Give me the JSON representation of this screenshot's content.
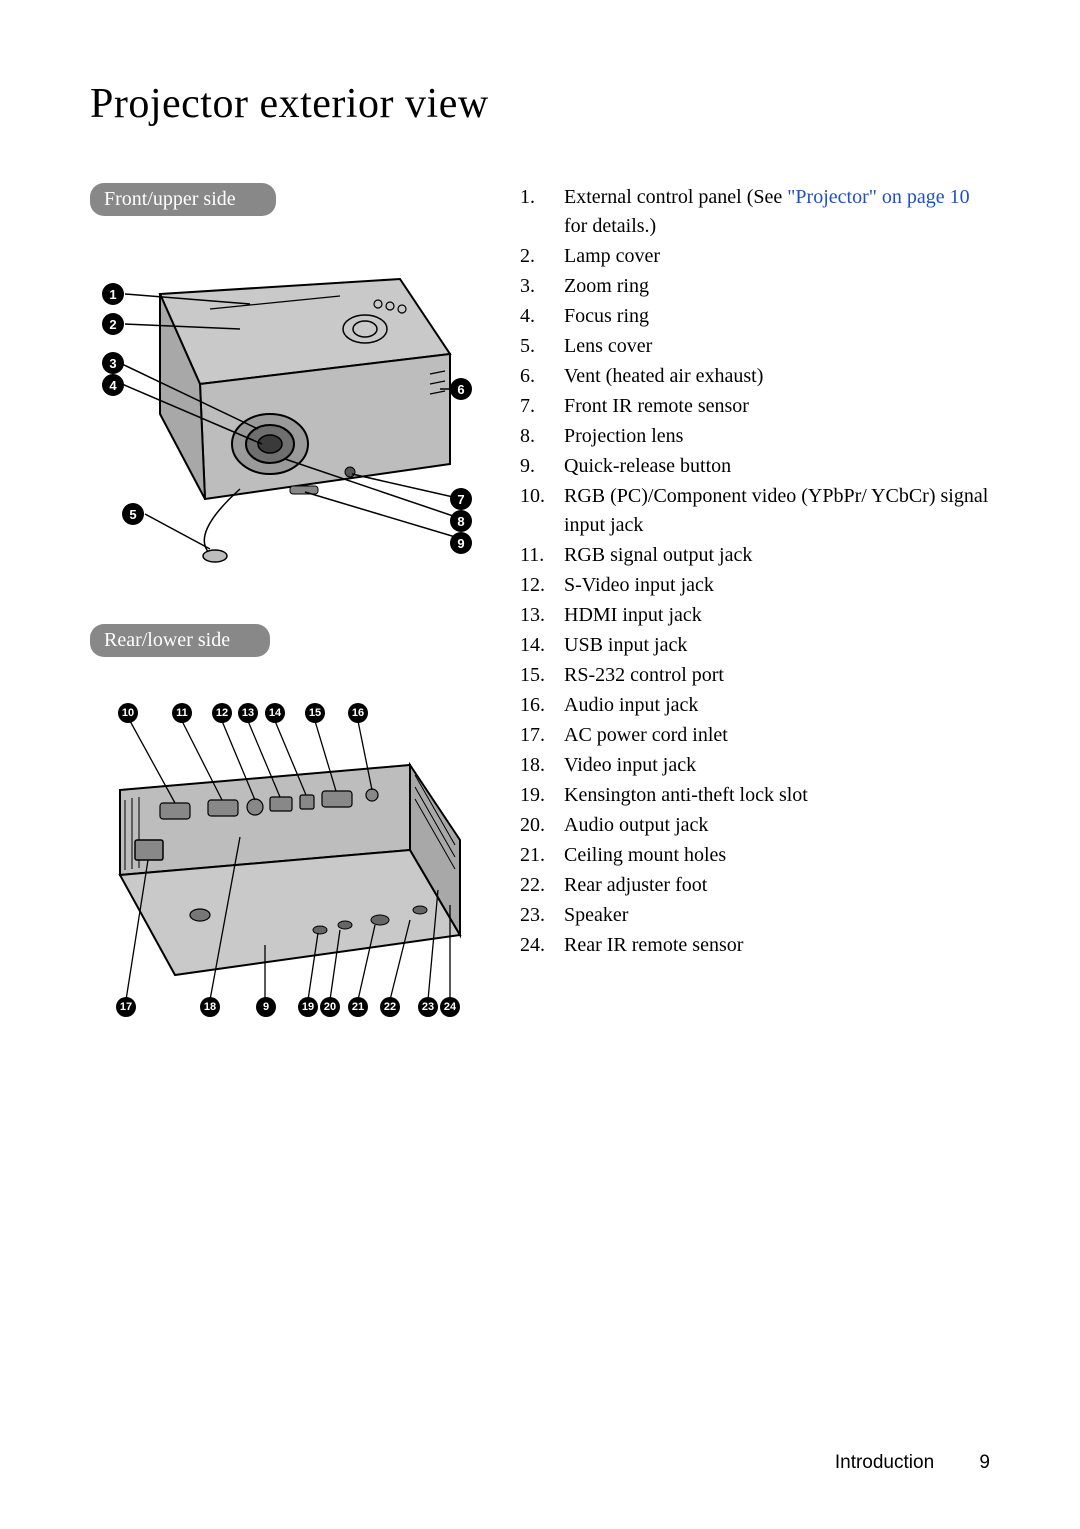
{
  "page": {
    "title": "Projector exterior view",
    "footer_section": "Introduction",
    "footer_page": "9"
  },
  "sections": {
    "front": {
      "label": "Front/upper side"
    },
    "rear": {
      "label": "Rear/lower side"
    }
  },
  "link_text": "\"Projector\" on page 10",
  "parts": [
    {
      "n": "1.",
      "pre": "External control panel (See ",
      "link": true,
      "post": " for details.)"
    },
    {
      "n": "2.",
      "text": "Lamp cover"
    },
    {
      "n": "3.",
      "text": "Zoom ring"
    },
    {
      "n": "4.",
      "text": "Focus ring"
    },
    {
      "n": "5.",
      "text": "Lens cover"
    },
    {
      "n": "6.",
      "text": "Vent (heated air exhaust)"
    },
    {
      "n": "7.",
      "text": "Front IR remote sensor"
    },
    {
      "n": "8.",
      "text": "Projection lens"
    },
    {
      "n": "9.",
      "text": "Quick-release button"
    },
    {
      "n": "10.",
      "text": "RGB (PC)/Component video (YPbPr/ YCbCr) signal input jack"
    },
    {
      "n": "11.",
      "text": "RGB signal output jack"
    },
    {
      "n": "12.",
      "text": "S-Video input jack"
    },
    {
      "n": "13.",
      "text": "HDMI input jack"
    },
    {
      "n": "14.",
      "text": "USB input jack"
    },
    {
      "n": "15.",
      "text": "RS-232 control port"
    },
    {
      "n": "16.",
      "text": "Audio input jack"
    },
    {
      "n": "17.",
      "text": "AC power cord inlet"
    },
    {
      "n": "18.",
      "text": "Video input jack"
    },
    {
      "n": "19.",
      "text": "Kensington anti-theft lock slot"
    },
    {
      "n": "20.",
      "text": "Audio output jack"
    },
    {
      "n": "21.",
      "text": "Ceiling mount holes"
    },
    {
      "n": "22.",
      "text": "Rear adjuster foot"
    },
    {
      "n": "23.",
      "text": "Speaker"
    },
    {
      "n": "24.",
      "text": "Rear IR remote sensor"
    }
  ],
  "callouts_front": [
    "1",
    "2",
    "3",
    "4",
    "5",
    "6",
    "7",
    "8",
    "9"
  ],
  "callouts_rear_top": [
    "10",
    "11",
    "12",
    "13",
    "14",
    "15",
    "16"
  ],
  "callouts_rear_bottom": [
    "17",
    "18",
    "9",
    "19",
    "20",
    "21",
    "22",
    "23",
    "24"
  ],
  "colors": {
    "label_bg": "#888888",
    "label_fg": "#ffffff",
    "link": "#2050c0",
    "body_fill": "#c9c9c9"
  }
}
